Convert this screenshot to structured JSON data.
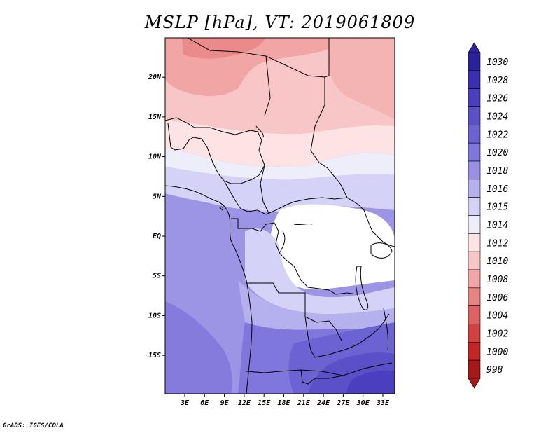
{
  "title": "MSLP [hPa], VT: 2019061809",
  "credit": "GrADS: IGES/COLA",
  "map": {
    "lat_labels": [
      {
        "lat": 20,
        "text": "20N"
      },
      {
        "lat": 15,
        "text": "15N"
      },
      {
        "lat": 10,
        "text": "10N"
      },
      {
        "lat": 5,
        "text": "5N"
      },
      {
        "lat": 0,
        "text": "EQ"
      },
      {
        "lat": -5,
        "text": "5S"
      },
      {
        "lat": -10,
        "text": "10S"
      },
      {
        "lat": -15,
        "text": "15S"
      }
    ],
    "lon_labels": [
      {
        "lon": 3,
        "text": "3E"
      },
      {
        "lon": 6,
        "text": "6E"
      },
      {
        "lon": 9,
        "text": "9E"
      },
      {
        "lon": 12,
        "text": "12E"
      },
      {
        "lon": 15,
        "text": "15E"
      },
      {
        "lon": 18,
        "text": "18E"
      },
      {
        "lon": 21,
        "text": "21E"
      },
      {
        "lon": 24,
        "text": "24E"
      },
      {
        "lon": 27,
        "text": "27E"
      },
      {
        "lon": 30,
        "text": "30E"
      },
      {
        "lon": 33,
        "text": "33E"
      }
    ]
  },
  "colorbar": {
    "levels": [
      "1030",
      "1028",
      "1026",
      "1024",
      "1022",
      "1020",
      "1018",
      "1016",
      "1015",
      "1014",
      "1012",
      "1010",
      "1008",
      "1006",
      "1004",
      "1002",
      "1000",
      "998"
    ],
    "colors": [
      "#2a229a",
      "#3a2fb0",
      "#4a3fbf",
      "#5a50c8",
      "#6c63d2",
      "#8077dc",
      "#9990e4",
      "#b5b0ee",
      "#d4d2f6",
      "#eeeefb",
      "#fde3e3",
      "#f8c6c6",
      "#f1a5a5",
      "#e88383",
      "#df6161",
      "#d43f3f",
      "#c52525",
      "#a81818"
    ]
  }
}
